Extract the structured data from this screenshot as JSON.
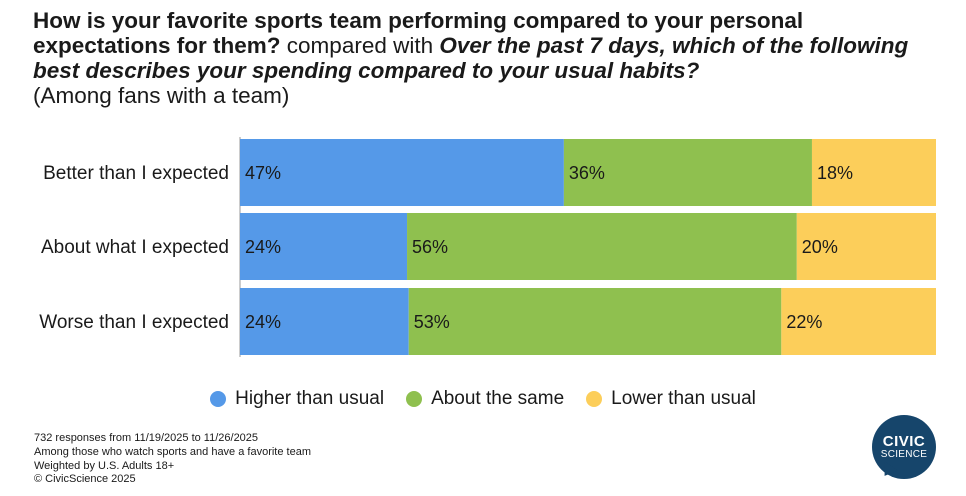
{
  "title": {
    "part1": "How is your favorite sports team performing compared to your personal expectations for them?",
    "part2": " compared with ",
    "part3": "Over the past 7 days, which of the following best describes your spending compared to your usual habits?",
    "subtitle": "(Among fans with a team)"
  },
  "chart_data": {
    "type": "bar",
    "orientation": "horizontal",
    "stacked": true,
    "normalized": true,
    "categories": [
      "Better than I expected",
      "About what I expected",
      "Worse than I expected"
    ],
    "series": [
      {
        "name": "Higher than usual",
        "color": "#5599e8",
        "values": [
          47,
          24,
          24
        ]
      },
      {
        "name": "About the same",
        "color": "#8fc04f",
        "values": [
          36,
          56,
          53
        ]
      },
      {
        "name": "Lower than usual",
        "color": "#fcce5a",
        "values": [
          18,
          20,
          22
        ]
      }
    ],
    "value_suffix": "%",
    "legend_position": "bottom"
  },
  "footnotes": [
    "732 responses from 11/19/2025 to 11/26/2025",
    "Among those who watch sports and have a favorite team",
    "Weighted by U.S. Adults 18+",
    "© CivicScience 2025"
  ],
  "logo": {
    "line1": "CIVIC",
    "line2": "SCIENCE"
  }
}
